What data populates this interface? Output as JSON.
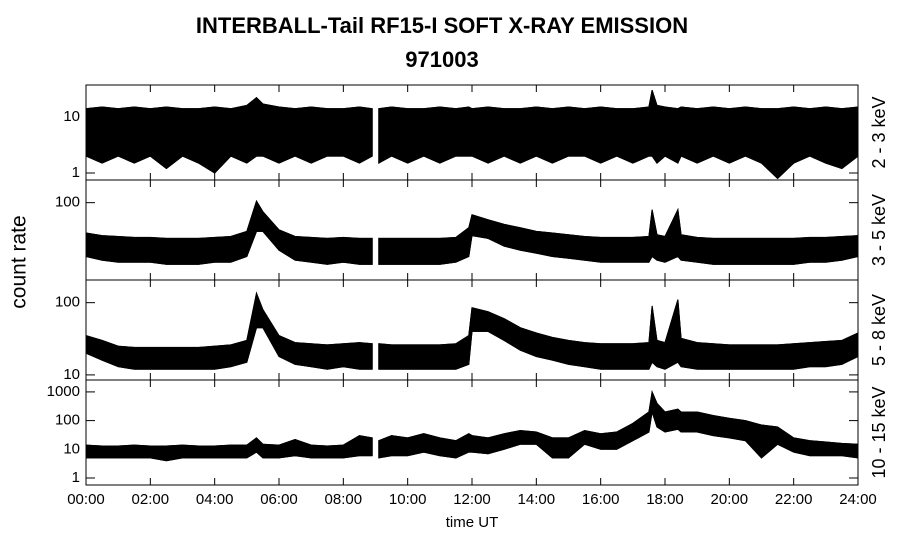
{
  "chart_data": {
    "type": "line",
    "title": "INTERBALL-Tail RF15-I SOFT X-RAY EMISSION",
    "subtitle": "971003",
    "xlabel": "time UT",
    "ylabel": "count rate",
    "xlim": [
      0,
      24
    ],
    "xticks": [
      {
        "value": 0,
        "label": "00:00"
      },
      {
        "value": 2,
        "label": "02:00"
      },
      {
        "value": 4,
        "label": "04:00"
      },
      {
        "value": 6,
        "label": "06:00"
      },
      {
        "value": 8,
        "label": "08:00"
      },
      {
        "value": 10,
        "label": "10:00"
      },
      {
        "value": 12,
        "label": "12:00"
      },
      {
        "value": 14,
        "label": "14:00"
      },
      {
        "value": 16,
        "label": "16:00"
      },
      {
        "value": 18,
        "label": "18:00"
      },
      {
        "value": 20,
        "label": "20:00"
      },
      {
        "value": 22,
        "label": "22:00"
      },
      {
        "value": 24,
        "label": "24:00"
      }
    ],
    "x": [
      0,
      0.5,
      1,
      1.5,
      2,
      2.5,
      3,
      3.5,
      4,
      4.5,
      5,
      5.3,
      5.5,
      6,
      6.5,
      7,
      7.5,
      8,
      8.5,
      8.9,
      9,
      9.1,
      9.5,
      10,
      10.5,
      11,
      11.5,
      11.9,
      12,
      12.5,
      13,
      13.5,
      14,
      14.5,
      15,
      15.5,
      16,
      16.5,
      17,
      17.5,
      17.6,
      17.75,
      18,
      18.4,
      18.5,
      19,
      19.5,
      20,
      20.5,
      21,
      21.5,
      22,
      22.5,
      23,
      23.5,
      24
    ],
    "color": "#000000",
    "panels": [
      {
        "type": "line",
        "label": "2 - 3 keV",
        "log_y": true,
        "ylim": [
          0.75,
          37
        ],
        "yticks": [
          1,
          10
        ],
        "upper": [
          14,
          15,
          14,
          15,
          14,
          15,
          14,
          14,
          15,
          14,
          16,
          22,
          17,
          15,
          14,
          15,
          14,
          14,
          15,
          14,
          null,
          14,
          15,
          14,
          14,
          15,
          14,
          15,
          14,
          15,
          14,
          14,
          15,
          14,
          15,
          14,
          15,
          14,
          14,
          15,
          30,
          16,
          15,
          14,
          15,
          14,
          15,
          14,
          15,
          14,
          14,
          15,
          14,
          15,
          14,
          15
        ],
        "lower": [
          2,
          1.5,
          2,
          1.5,
          2,
          1.2,
          2,
          1.5,
          1,
          2,
          1.5,
          2,
          2,
          1.5,
          2,
          1.5,
          2,
          2,
          1.5,
          2,
          null,
          1.5,
          2,
          1.5,
          2,
          1.5,
          2,
          2,
          2,
          1.5,
          2,
          1.5,
          2,
          1.5,
          2,
          2,
          1.5,
          2,
          1.5,
          2,
          2,
          1.5,
          2,
          1.5,
          2,
          1.5,
          2,
          1.5,
          2,
          1.5,
          0.8,
          1.5,
          2,
          1.5,
          1.2,
          2
        ]
      },
      {
        "type": "line",
        "label": "3 - 5 keV",
        "log_y": true,
        "ylim": [
          8.5,
          206
        ],
        "yticks": [
          100
        ],
        "upper": [
          38,
          35,
          34,
          33,
          33,
          32,
          32,
          32,
          33,
          34,
          40,
          105,
          75,
          42,
          34,
          33,
          32,
          33,
          32,
          32,
          null,
          32,
          32,
          32,
          32,
          32,
          33,
          45,
          68,
          58,
          50,
          45,
          40,
          38,
          36,
          34,
          33,
          33,
          33,
          34,
          80,
          36,
          34,
          80,
          36,
          33,
          32,
          32,
          32,
          32,
          32,
          32,
          33,
          33,
          34,
          35
        ],
        "lower": [
          18,
          16,
          15,
          15,
          15,
          14,
          14,
          14,
          15,
          15,
          18,
          40,
          40,
          22,
          16,
          15,
          14,
          15,
          14,
          14,
          null,
          14,
          14,
          14,
          14,
          14,
          15,
          18,
          35,
          32,
          25,
          22,
          20,
          18,
          17,
          16,
          15,
          15,
          15,
          15,
          18,
          16,
          15,
          18,
          16,
          15,
          14,
          14,
          14,
          14,
          14,
          14,
          15,
          15,
          16,
          18
        ]
      },
      {
        "type": "line",
        "label": "5 - 8 keV",
        "log_y": true,
        "ylim": [
          8.5,
          206
        ],
        "yticks": [
          10,
          100
        ],
        "upper": [
          35,
          30,
          25,
          24,
          24,
          24,
          24,
          24,
          25,
          26,
          30,
          135,
          80,
          35,
          28,
          27,
          26,
          27,
          28,
          27,
          null,
          27,
          26,
          26,
          26,
          26,
          27,
          35,
          85,
          75,
          60,
          45,
          38,
          33,
          30,
          28,
          27,
          27,
          27,
          28,
          90,
          30,
          28,
          110,
          32,
          28,
          27,
          26,
          26,
          26,
          26,
          27,
          28,
          29,
          30,
          38
        ],
        "lower": [
          20,
          16,
          13,
          12,
          12,
          12,
          12,
          12,
          12,
          13,
          15,
          45,
          45,
          18,
          14,
          13,
          12,
          13,
          12,
          12,
          null,
          12,
          12,
          12,
          12,
          12,
          12,
          14,
          40,
          40,
          30,
          22,
          18,
          16,
          14,
          13,
          12,
          12,
          12,
          12,
          15,
          13,
          12,
          15,
          13,
          12,
          12,
          12,
          12,
          12,
          12,
          12,
          13,
          13,
          14,
          18
        ]
      },
      {
        "type": "line",
        "label": "10 - 15 keV",
        "log_y": true,
        "ylim": [
          0.57,
          2600
        ],
        "yticks": [
          1,
          10,
          100,
          1000
        ],
        "upper": [
          14,
          13,
          13,
          14,
          13,
          13,
          14,
          13,
          13,
          14,
          14,
          25,
          15,
          14,
          22,
          14,
          13,
          14,
          30,
          25,
          null,
          20,
          30,
          25,
          35,
          25,
          20,
          35,
          30,
          25,
          35,
          45,
          40,
          25,
          25,
          45,
          35,
          40,
          80,
          200,
          1000,
          400,
          200,
          250,
          200,
          200,
          150,
          120,
          100,
          70,
          60,
          25,
          20,
          18,
          16,
          15
        ],
        "lower": [
          5,
          5,
          5,
          5,
          5,
          4,
          5,
          5,
          5,
          5,
          5,
          8,
          5,
          5,
          6,
          5,
          5,
          5,
          6,
          6,
          null,
          5,
          6,
          6,
          8,
          6,
          5,
          8,
          8,
          7,
          10,
          15,
          15,
          5,
          5,
          15,
          10,
          10,
          20,
          40,
          200,
          60,
          40,
          50,
          40,
          40,
          30,
          25,
          20,
          5,
          15,
          8,
          6,
          6,
          6,
          5
        ]
      }
    ]
  }
}
